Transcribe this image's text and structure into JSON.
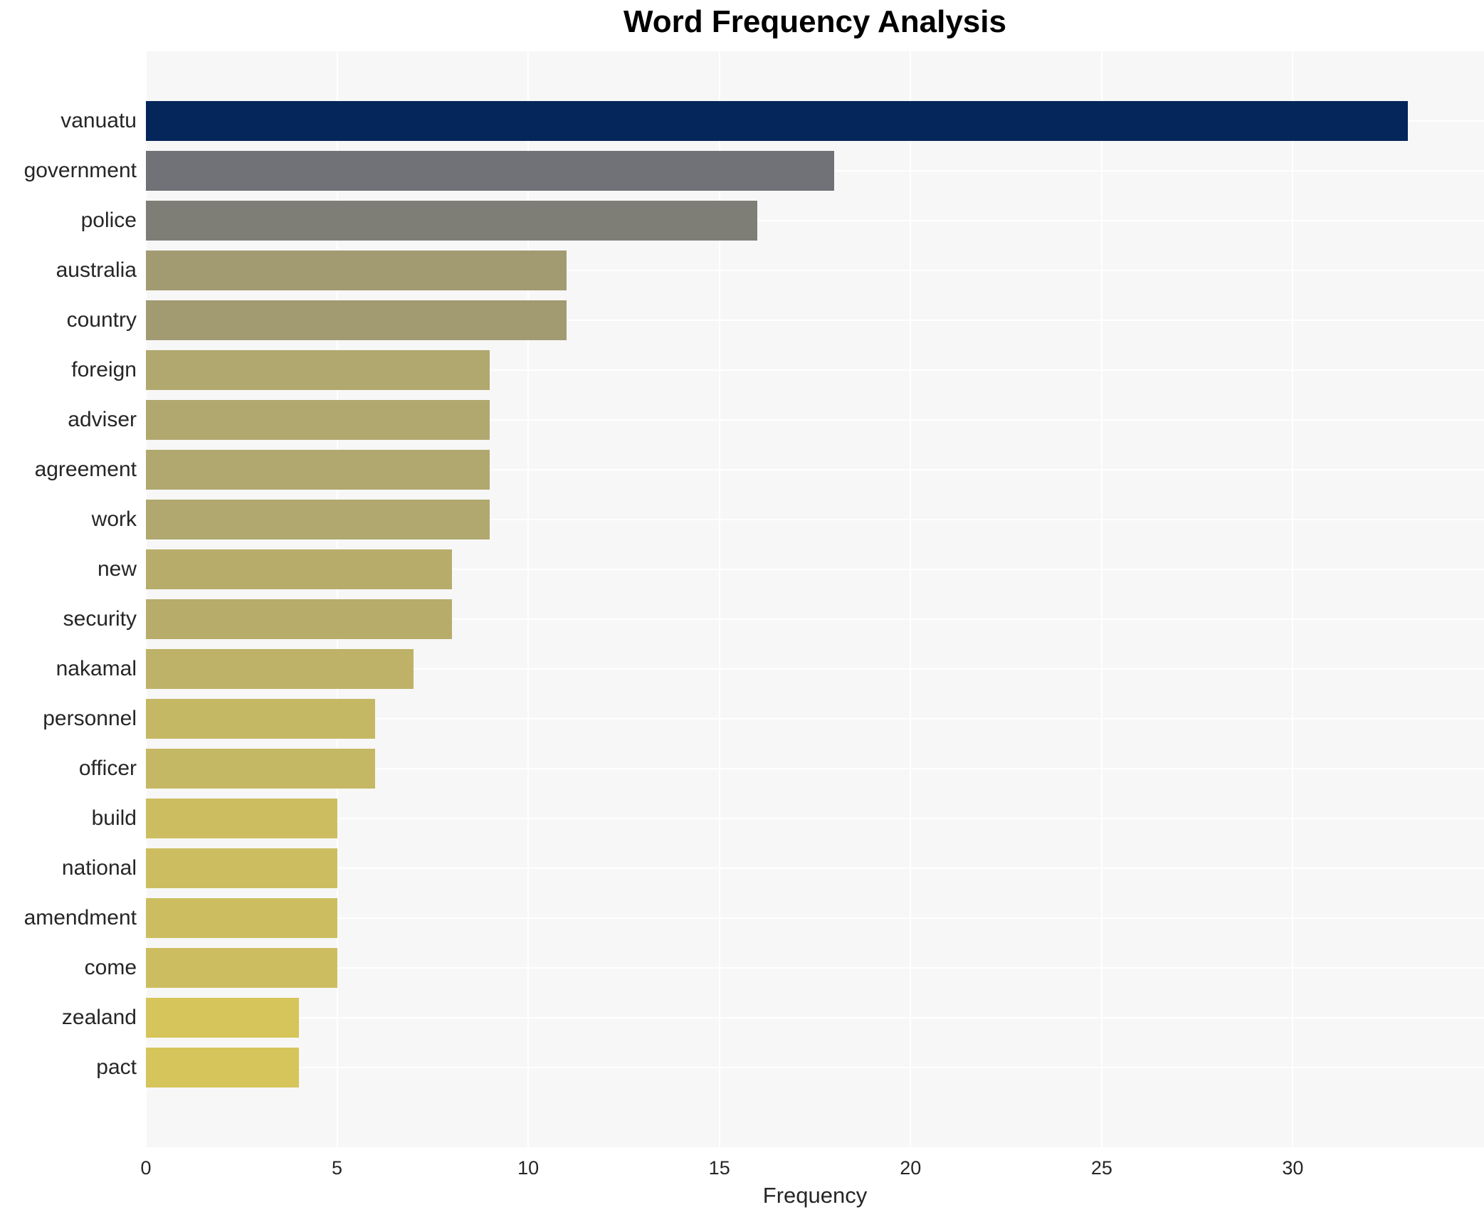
{
  "chart_data": {
    "type": "bar",
    "orientation": "horizontal",
    "title": "Word Frequency Analysis",
    "xlabel": "Frequency",
    "ylabel": "",
    "categories": [
      "vanuatu",
      "government",
      "police",
      "australia",
      "country",
      "foreign",
      "adviser",
      "agreement",
      "work",
      "new",
      "security",
      "nakamal",
      "personnel",
      "officer",
      "build",
      "national",
      "amendment",
      "come",
      "zealand",
      "pact"
    ],
    "values": [
      33,
      18,
      16,
      11,
      11,
      9,
      9,
      9,
      9,
      8,
      8,
      7,
      6,
      6,
      5,
      5,
      5,
      5,
      4,
      4
    ],
    "bar_colors": [
      "#05265a",
      "#707277",
      "#7e7e76",
      "#a29a71",
      "#a29a71",
      "#b0a86e",
      "#b0a86e",
      "#b0a86e",
      "#b0a86e",
      "#b7ac6a",
      "#b7ac6a",
      "#beb268",
      "#c5b864",
      "#c5b864",
      "#ccbe60",
      "#ccbe60",
      "#ccbe60",
      "#ccbe60",
      "#d5c55a",
      "#d5c55a"
    ],
    "x_ticks": [
      0,
      5,
      10,
      15,
      20,
      25,
      30
    ],
    "xlim": [
      0,
      35
    ],
    "grid": true,
    "legend": "none",
    "plot_bg": "#f7f7f7",
    "grid_color": "#ffffff",
    "text_color": "#262626"
  }
}
